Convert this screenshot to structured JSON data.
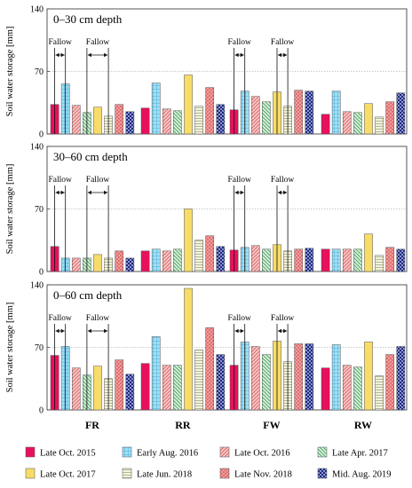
{
  "chart_data": {
    "type": "bar",
    "categories": [
      "FR",
      "RR",
      "FW",
      "RW"
    ],
    "series_names": [
      "Late Oct. 2015",
      "Early Aug. 2016",
      "Late Oct. 2016",
      "Late Apr. 2017",
      "Late Oct. 2017",
      "Late Jun. 2018",
      "Late Nov. 2018",
      "Mid. Aug. 2019"
    ],
    "series_styles": [
      {
        "fill": "#e8105c",
        "pattern": "solid"
      },
      {
        "fill": "#9fe0f5",
        "pattern": "grid",
        "stroke": "#3a9fd6"
      },
      {
        "fill": "#f7c8c8",
        "pattern": "diag-right",
        "stroke": "#d75a5a"
      },
      {
        "fill": "#d8f0d8",
        "pattern": "diag-left",
        "stroke": "#3f9a5a"
      },
      {
        "fill": "#f7dc6a",
        "pattern": "solid"
      },
      {
        "fill": "#f3f3dc",
        "pattern": "hlines",
        "stroke": "#a8a884"
      },
      {
        "fill": "#f2a6a6",
        "pattern": "crosshatch",
        "stroke": "#d44a4a"
      },
      {
        "fill": "#8a94d8",
        "pattern": "check",
        "stroke": "#1f2a74"
      }
    ],
    "ylabel": "Soil water storage [mm]",
    "ylim": [
      0,
      140
    ],
    "yticks": [
      0,
      70,
      140
    ],
    "reference_line": 70,
    "fallow_label": "Fallow",
    "fallow_periods": [
      {
        "category": "FR",
        "from_bar": 0,
        "to_bar": 1
      },
      {
        "category": "FR",
        "from_bar": 3,
        "to_bar": 5
      },
      {
        "category": "FW",
        "from_bar": 0,
        "to_bar": 1
      },
      {
        "category": "FW",
        "from_bar": 4,
        "to_bar": 5
      }
    ],
    "panels": [
      {
        "title": "0–30 cm depth",
        "series": [
          {
            "name": "Late Oct. 2015",
            "values": [
              33,
              29,
              27,
              22
            ]
          },
          {
            "name": "Early Aug. 2016",
            "values": [
              56,
              57,
              48,
              48
            ]
          },
          {
            "name": "Late Oct. 2016",
            "values": [
              32,
              28,
              42,
              25
            ]
          },
          {
            "name": "Late Apr. 2017",
            "values": [
              24,
              26,
              36,
              24
            ]
          },
          {
            "name": "Late Oct. 2017",
            "values": [
              30,
              66,
              47,
              34
            ]
          },
          {
            "name": "Late Jun. 2018",
            "values": [
              20,
              31,
              31,
              19
            ]
          },
          {
            "name": "Late Nov. 2018",
            "values": [
              33,
              52,
              49,
              36
            ]
          },
          {
            "name": "Mid. Aug. 2019",
            "values": [
              25,
              33,
              48,
              46
            ]
          }
        ]
      },
      {
        "title": "30–60 cm depth",
        "series": [
          {
            "name": "Late Oct. 2015",
            "values": [
              28,
              23,
              24,
              25
            ]
          },
          {
            "name": "Early Aug. 2016",
            "values": [
              15,
              25,
              27,
              25
            ]
          },
          {
            "name": "Late Oct. 2016",
            "values": [
              15,
              23,
              29,
              25
            ]
          },
          {
            "name": "Late Apr. 2017",
            "values": [
              15,
              25,
              25,
              25
            ]
          },
          {
            "name": "Late Oct. 2017",
            "values": [
              19,
              70,
              30,
              42
            ]
          },
          {
            "name": "Late Jun. 2018",
            "values": [
              15,
              35,
              23,
              18
            ]
          },
          {
            "name": "Late Nov. 2018",
            "values": [
              23,
              40,
              25,
              27
            ]
          },
          {
            "name": "Mid. Aug. 2019",
            "values": [
              15,
              28,
              26,
              25
            ]
          }
        ]
      },
      {
        "title": "0–60 cm depth",
        "series": [
          {
            "name": "Late Oct. 2015",
            "values": [
              61,
              52,
              50,
              47
            ]
          },
          {
            "name": "Early Aug. 2016",
            "values": [
              71,
              82,
              76,
              73
            ]
          },
          {
            "name": "Late Oct. 2016",
            "values": [
              47,
              50,
              71,
              50
            ]
          },
          {
            "name": "Late Apr. 2017",
            "values": [
              39,
              50,
              62,
              48
            ]
          },
          {
            "name": "Late Oct. 2017",
            "values": [
              49,
              136,
              77,
              76
            ]
          },
          {
            "name": "Late Jun. 2018",
            "values": [
              35,
              67,
              54,
              38
            ]
          },
          {
            "name": "Late Nov. 2018",
            "values": [
              56,
              92,
              74,
              62
            ]
          },
          {
            "name": "Mid. Aug. 2019",
            "values": [
              40,
              62,
              74,
              71
            ]
          }
        ]
      }
    ]
  }
}
